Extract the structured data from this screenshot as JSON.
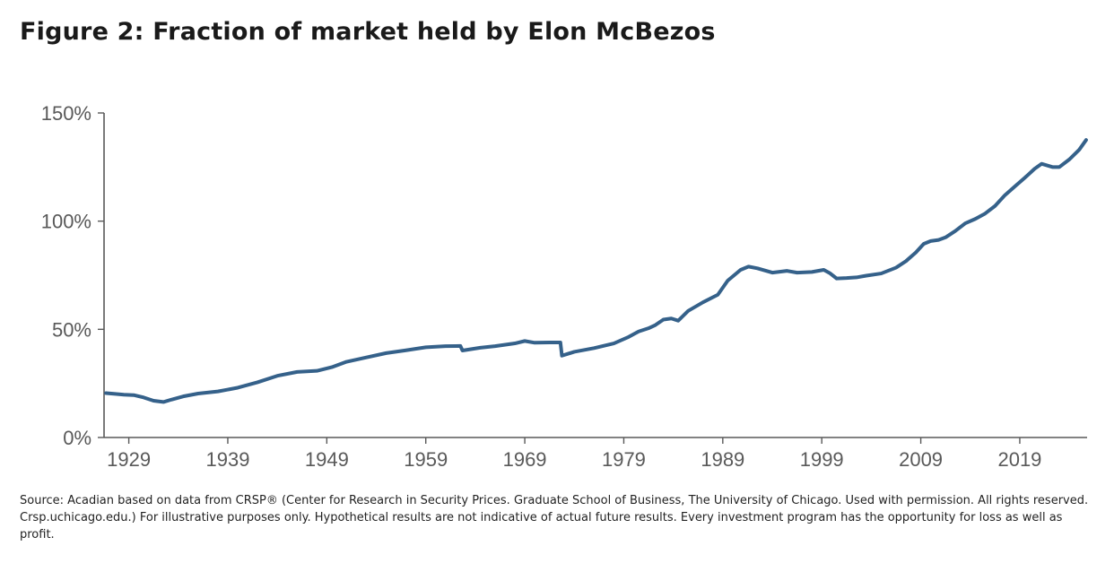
{
  "title": "Figure 2: Fraction of market held by Elon McBezos",
  "footnote": "Source: Acadian based on data from CRSP® (Center for Research in Security Prices. Graduate School of Business, The University of Chicago. Used with permission. All rights reserved. Crsp.uchicago.edu.) For illustrative purposes only. Hypothetical results are not indicative of actual future results. Every investment program has the opportunity for loss as well as profit.",
  "colors": {
    "line": "#35618a",
    "axis": "#595959",
    "tick_text": "#595959"
  },
  "chart_data": {
    "type": "line",
    "title": "Figure 2: Fraction of market held by Elon McBezos",
    "xlabel": "",
    "ylabel": "",
    "xlim": [
      1926.5,
      2025.8
    ],
    "ylim": [
      0,
      150
    ],
    "grid": false,
    "x_ticks": [
      1929,
      1939,
      1949,
      1959,
      1969,
      1979,
      1989,
      1999,
      2009,
      2019
    ],
    "x_tick_labels": [
      "1929",
      "1939",
      "1949",
      "1959",
      "1969",
      "1979",
      "1989",
      "1999",
      "2009",
      "2019"
    ],
    "y_ticks": [
      0,
      50,
      100,
      150
    ],
    "y_tick_labels": [
      "0%",
      "50%",
      "100%",
      "150%"
    ],
    "series": [
      {
        "name": "Fraction of market held",
        "x": [
          1926.7,
          1927.5,
          1928.5,
          1929.5,
          1930.5,
          1931.5,
          1932.5,
          1933.3,
          1934.5,
          1936,
          1938,
          1940,
          1942,
          1944,
          1946,
          1948,
          1949.5,
          1951,
          1953,
          1955,
          1957,
          1959,
          1961,
          1962.5,
          1962.7,
          1964.5,
          1966,
          1968,
          1969,
          1970,
          1971.5,
          1972.6,
          1972.75,
          1974,
          1976,
          1978,
          1979.5,
          1980.5,
          1981.5,
          1982.2,
          1983,
          1983.8,
          1984.5,
          1985.5,
          1987,
          1988.5,
          1989.5,
          1990.8,
          1991.6,
          1992.5,
          1994,
          1995.5,
          1996.5,
          1998,
          1999.2,
          1999.8,
          2000.5,
          2001.5,
          2002.5,
          2003.5,
          2005,
          2006.5,
          2007.5,
          2008.5,
          2009.3,
          2010,
          2010.8,
          2011.5,
          2012.5,
          2013.5,
          2014.5,
          2015.5,
          2016.5,
          2017.5,
          2018.5,
          2019.5,
          2020.5,
          2021.2,
          2022.3,
          2023,
          2024,
          2025,
          2025.7
        ],
        "values": [
          20.5,
          20.2,
          19.8,
          19.6,
          18.5,
          17,
          16.4,
          17.5,
          19,
          20.3,
          21.3,
          23,
          25.5,
          28.5,
          30.3,
          30.8,
          32.5,
          35,
          37,
          39,
          40.3,
          41.7,
          42.2,
          42.3,
          40.2,
          41.5,
          42.2,
          43.5,
          44.6,
          43.8,
          43.9,
          43.9,
          37.8,
          39.6,
          41.3,
          43.5,
          46.5,
          49,
          50.5,
          52,
          54.5,
          55,
          54,
          58.5,
          62.5,
          66,
          72.5,
          77.5,
          79,
          78.2,
          76.2,
          77,
          76.2,
          76.5,
          77.5,
          76,
          73.5,
          73.7,
          74,
          74.8,
          75.8,
          78.5,
          81.5,
          85.5,
          89.5,
          90.8,
          91.3,
          92.5,
          95.5,
          99,
          101,
          103.5,
          107,
          112,
          116,
          120,
          124.2,
          126.5,
          125,
          125,
          128.5,
          133,
          137.5
        ]
      }
    ]
  }
}
